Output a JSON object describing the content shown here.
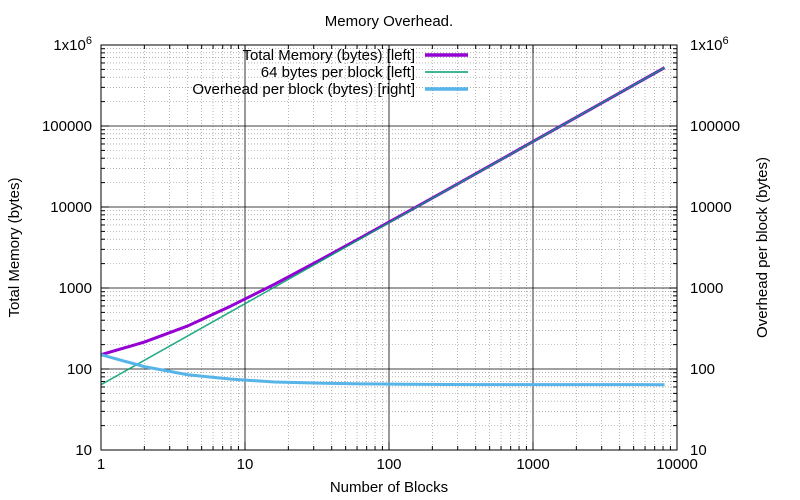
{
  "chart_data": {
    "type": "line",
    "title": "Memory Overhead.",
    "xlabel": "Number of Blocks",
    "ylabel": "Total Memory (bytes)",
    "y2label": "Overhead per block (bytes)",
    "xscale": "log",
    "yscale": "log",
    "y2scale": "log",
    "xlim": [
      1,
      10000
    ],
    "ylim": [
      10,
      1000000
    ],
    "y2lim": [
      10,
      1000000
    ],
    "grid": true,
    "legend_position": "top-left",
    "xticks": [
      {
        "value": 1,
        "label": "1"
      },
      {
        "value": 10,
        "label": "10"
      },
      {
        "value": 100,
        "label": "100"
      },
      {
        "value": 1000,
        "label": "1000"
      },
      {
        "value": 10000,
        "label": "10000"
      }
    ],
    "yticks": [
      {
        "value": 10,
        "label": "10"
      },
      {
        "value": 100,
        "label": "100"
      },
      {
        "value": 1000,
        "label": "1000"
      },
      {
        "value": 10000,
        "label": "10000"
      },
      {
        "value": 100000,
        "label": "100000"
      },
      {
        "value": 1000000,
        "label": "1x10",
        "sup": "6"
      }
    ],
    "series": [
      {
        "name": "Total Memory (bytes) [left]",
        "axis": "left",
        "color": "#9400d3",
        "x": [
          1,
          2,
          4,
          8,
          16,
          32,
          64,
          128,
          256,
          512,
          1024,
          2048,
          4096,
          8192
        ],
        "y": [
          150,
          215,
          340,
          600,
          1110,
          2140,
          4200,
          8300,
          16500,
          32900,
          65800,
          131400,
          262700,
          525000
        ]
      },
      {
        "name": "64 bytes per block [left]",
        "axis": "left",
        "color": "#009e73",
        "x": [
          1,
          2,
          4,
          8,
          16,
          32,
          64,
          128,
          256,
          512,
          1024,
          2048,
          4096,
          8192
        ],
        "y": [
          64,
          128,
          256,
          512,
          1024,
          2048,
          4096,
          8192,
          16384,
          32768,
          65536,
          131072,
          262144,
          524288
        ]
      },
      {
        "name": "Overhead per block (bytes) [right]",
        "axis": "right",
        "color": "#56b4e9",
        "x": [
          1,
          2,
          4,
          8,
          16,
          32,
          64,
          128,
          256,
          512,
          1024,
          2048,
          4096,
          8192
        ],
        "y": [
          150,
          107,
          85,
          75,
          69,
          67,
          65.6,
          64.8,
          64.4,
          64.2,
          64.1,
          64.05,
          64.03,
          64.0
        ]
      }
    ]
  }
}
